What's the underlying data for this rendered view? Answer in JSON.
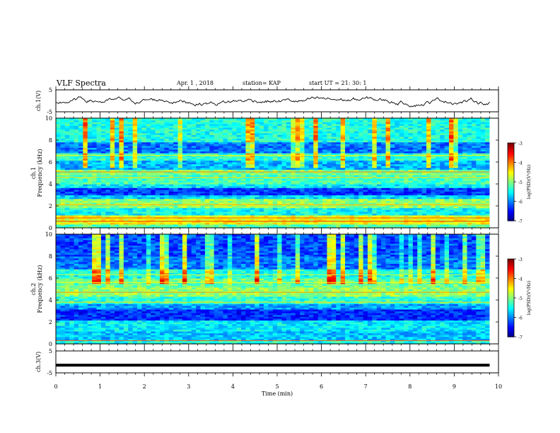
{
  "header": {
    "title": "VLF Spectra",
    "date": "Apr. 1 , 2018",
    "station": "station= KAP",
    "start": "start  UT =   21: 30: 1"
  },
  "chart_data": [
    {
      "type": "line",
      "ylabel": "ch.1(V)",
      "ylim": [
        -5,
        5
      ],
      "yticks": [
        "5",
        "-5"
      ]
    },
    {
      "type": "heatmap",
      "ylabel_top": "ch.1",
      "ylabel": "Frequency (kHz)",
      "ylim": [
        0,
        10
      ],
      "yticks": [
        "0",
        "2",
        "4",
        "6",
        "8",
        "10"
      ],
      "colorbar": {
        "label": "log(PSD)(V²/Hz)",
        "range": [
          -7,
          -3
        ],
        "ticks": [
          "-3",
          "-4",
          "-5",
          "-6",
          "-7"
        ]
      }
    },
    {
      "type": "heatmap",
      "ylabel_top": "ch.2",
      "ylabel": "Frequency (kHz)",
      "ylim": [
        0,
        10
      ],
      "yticks": [
        "0",
        "2",
        "4",
        "6",
        "8",
        "10"
      ],
      "colorbar": {
        "label": "log(PSD)(V²/Hz)",
        "range": [
          -7,
          -3
        ],
        "ticks": [
          "-3",
          "-4",
          "-5",
          "-6",
          "-7"
        ]
      }
    },
    {
      "type": "line",
      "ylabel": "ch.3(V)",
      "ylim": [
        -5,
        5
      ],
      "yticks": [
        "5",
        "-5"
      ],
      "value": -1.5
    }
  ],
  "xaxis": {
    "label": "Time  (min)",
    "xlim": [
      0,
      10
    ],
    "ticks": [
      "0",
      "1",
      "2",
      "3",
      "4",
      "5",
      "6",
      "7",
      "8",
      "9",
      "10"
    ],
    "data_end": 9.8
  }
}
